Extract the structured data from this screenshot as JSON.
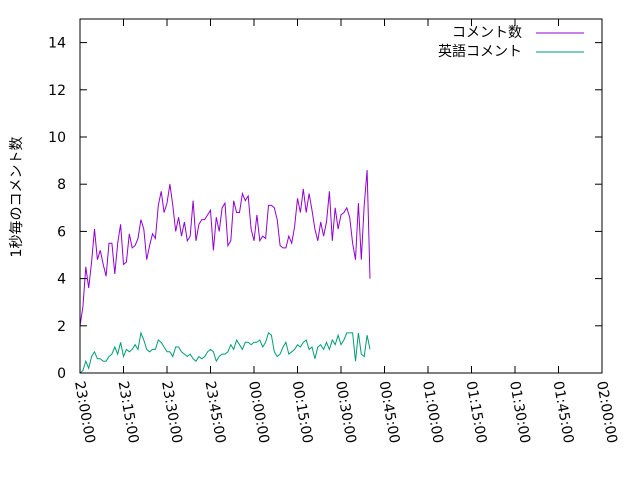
{
  "chart_data": {
    "type": "line",
    "title": "",
    "xlabel": "",
    "ylabel": "1秒毎のコメント数",
    "ylim": [
      0,
      15
    ],
    "yticks": [
      0,
      2,
      4,
      6,
      8,
      10,
      12,
      14
    ],
    "xlim": [
      "23:00:00",
      "02:00:00"
    ],
    "xticks": [
      "23:00:00",
      "23:15:00",
      "23:30:00",
      "23:45:00",
      "00:00:00",
      "00:15:00",
      "00:30:00",
      "00:45:00",
      "01:00:00",
      "01:15:00",
      "01:30:00",
      "01:45:00",
      "02:00:00"
    ],
    "legend_position": "top-right",
    "grid": false,
    "series": [
      {
        "name": "コメント数",
        "color": "#9400d3",
        "points": [
          [
            "23:00:00",
            2.0
          ],
          [
            "23:01:00",
            2.8
          ],
          [
            "23:02:00",
            4.5
          ],
          [
            "23:03:00",
            3.6
          ],
          [
            "23:04:00",
            4.7
          ],
          [
            "23:05:00",
            6.1
          ],
          [
            "23:06:00",
            4.8
          ],
          [
            "23:07:00",
            5.2
          ],
          [
            "23:08:00",
            4.6
          ],
          [
            "23:09:00",
            4.1
          ],
          [
            "23:10:00",
            5.5
          ],
          [
            "23:11:00",
            5.5
          ],
          [
            "23:12:00",
            4.2
          ],
          [
            "23:13:00",
            5.5
          ],
          [
            "23:14:00",
            6.3
          ],
          [
            "23:15:00",
            4.6
          ],
          [
            "23:16:00",
            4.7
          ],
          [
            "23:17:00",
            5.9
          ],
          [
            "23:18:00",
            5.3
          ],
          [
            "23:19:00",
            5.4
          ],
          [
            "23:20:00",
            5.7
          ],
          [
            "23:21:00",
            6.5
          ],
          [
            "23:22:00",
            6.1
          ],
          [
            "23:23:00",
            4.8
          ],
          [
            "23:24:00",
            5.4
          ],
          [
            "23:25:00",
            5.9
          ],
          [
            "23:26:00",
            5.7
          ],
          [
            "23:27:00",
            7.1
          ],
          [
            "23:28:00",
            7.7
          ],
          [
            "23:29:00",
            6.8
          ],
          [
            "23:30:00",
            7.2
          ],
          [
            "23:31:00",
            8.0
          ],
          [
            "23:32:00",
            7.1
          ],
          [
            "23:33:00",
            6.0
          ],
          [
            "23:34:00",
            6.6
          ],
          [
            "23:35:00",
            5.8
          ],
          [
            "23:36:00",
            6.4
          ],
          [
            "23:37:00",
            5.6
          ],
          [
            "23:38:00",
            5.8
          ],
          [
            "23:39:00",
            7.3
          ],
          [
            "23:40:00",
            5.6
          ],
          [
            "23:41:00",
            6.3
          ],
          [
            "23:42:00",
            6.5
          ],
          [
            "23:43:00",
            6.5
          ],
          [
            "23:44:00",
            6.7
          ],
          [
            "23:45:00",
            6.9
          ],
          [
            "23:46:00",
            5.2
          ],
          [
            "23:47:00",
            6.6
          ],
          [
            "23:48:00",
            6.0
          ],
          [
            "23:49:00",
            7.0
          ],
          [
            "23:50:00",
            7.2
          ],
          [
            "23:51:00",
            5.4
          ],
          [
            "23:52:00",
            5.6
          ],
          [
            "23:53:00",
            7.3
          ],
          [
            "23:54:00",
            6.8
          ],
          [
            "23:55:00",
            6.8
          ],
          [
            "23:56:00",
            7.6
          ],
          [
            "23:57:00",
            7.3
          ],
          [
            "23:58:00",
            7.5
          ],
          [
            "23:59:00",
            6.1
          ],
          [
            "00:00:00",
            5.6
          ],
          [
            "00:01:00",
            6.7
          ],
          [
            "00:02:00",
            5.6
          ],
          [
            "00:03:00",
            5.8
          ],
          [
            "00:04:00",
            5.7
          ],
          [
            "00:05:00",
            7.1
          ],
          [
            "00:06:00",
            7.1
          ],
          [
            "00:07:00",
            7.0
          ],
          [
            "00:08:00",
            6.5
          ],
          [
            "00:09:00",
            5.4
          ],
          [
            "00:10:00",
            5.3
          ],
          [
            "00:11:00",
            5.3
          ],
          [
            "00:12:00",
            5.8
          ],
          [
            "00:13:00",
            5.5
          ],
          [
            "00:14:00",
            6.2
          ],
          [
            "00:15:00",
            7.4
          ],
          [
            "00:16:00",
            6.8
          ],
          [
            "00:17:00",
            7.8
          ],
          [
            "00:18:00",
            6.8
          ],
          [
            "00:19:00",
            7.6
          ],
          [
            "00:20:00",
            6.9
          ],
          [
            "00:21:00",
            6.1
          ],
          [
            "00:22:00",
            5.6
          ],
          [
            "00:23:00",
            6.4
          ],
          [
            "00:24:00",
            5.8
          ],
          [
            "00:25:00",
            6.4
          ],
          [
            "00:26:00",
            7.7
          ],
          [
            "00:27:00",
            5.6
          ],
          [
            "00:28:00",
            7.0
          ],
          [
            "00:29:00",
            6.1
          ],
          [
            "00:30:00",
            6.7
          ],
          [
            "00:31:00",
            6.8
          ],
          [
            "00:32:00",
            7.0
          ],
          [
            "00:33:00",
            6.6
          ],
          [
            "00:34:00",
            5.5
          ],
          [
            "00:35:00",
            4.8
          ],
          [
            "00:36:00",
            7.2
          ],
          [
            "00:37:00",
            4.8
          ],
          [
            "00:38:00",
            7.1
          ],
          [
            "00:39:00",
            8.6
          ],
          [
            "00:40:00",
            4.0
          ]
        ]
      },
      {
        "name": "英語コメント",
        "color": "#009e73",
        "points": [
          [
            "23:00:00",
            0.0
          ],
          [
            "23:01:00",
            0.1
          ],
          [
            "23:02:00",
            0.5
          ],
          [
            "23:03:00",
            0.2
          ],
          [
            "23:04:00",
            0.7
          ],
          [
            "23:05:00",
            0.9
          ],
          [
            "23:06:00",
            0.6
          ],
          [
            "23:07:00",
            0.6
          ],
          [
            "23:08:00",
            0.5
          ],
          [
            "23:09:00",
            0.5
          ],
          [
            "23:10:00",
            0.7
          ],
          [
            "23:11:00",
            0.8
          ],
          [
            "23:12:00",
            1.1
          ],
          [
            "23:13:00",
            0.8
          ],
          [
            "23:14:00",
            1.3
          ],
          [
            "23:15:00",
            0.7
          ],
          [
            "23:16:00",
            1.0
          ],
          [
            "23:17:00",
            0.9
          ],
          [
            "23:18:00",
            1.0
          ],
          [
            "23:19:00",
            1.2
          ],
          [
            "23:20:00",
            1.0
          ],
          [
            "23:21:00",
            1.7
          ],
          [
            "23:22:00",
            1.4
          ],
          [
            "23:23:00",
            1.0
          ],
          [
            "23:24:00",
            0.9
          ],
          [
            "23:25:00",
            1.0
          ],
          [
            "23:26:00",
            1.0
          ],
          [
            "23:27:00",
            1.4
          ],
          [
            "23:28:00",
            1.3
          ],
          [
            "23:29:00",
            1.1
          ],
          [
            "23:30:00",
            0.9
          ],
          [
            "23:31:00",
            0.9
          ],
          [
            "23:32:00",
            0.7
          ],
          [
            "23:33:00",
            1.1
          ],
          [
            "23:34:00",
            1.1
          ],
          [
            "23:35:00",
            0.9
          ],
          [
            "23:36:00",
            0.8
          ],
          [
            "23:37:00",
            0.7
          ],
          [
            "23:38:00",
            0.8
          ],
          [
            "23:39:00",
            0.6
          ],
          [
            "23:40:00",
            0.5
          ],
          [
            "23:41:00",
            0.7
          ],
          [
            "23:42:00",
            0.6
          ],
          [
            "23:43:00",
            0.7
          ],
          [
            "23:44:00",
            0.9
          ],
          [
            "23:45:00",
            1.0
          ],
          [
            "23:46:00",
            0.9
          ],
          [
            "23:47:00",
            0.5
          ],
          [
            "23:48:00",
            0.7
          ],
          [
            "23:49:00",
            0.8
          ],
          [
            "23:50:00",
            0.8
          ],
          [
            "23:51:00",
            0.9
          ],
          [
            "23:52:00",
            1.2
          ],
          [
            "23:53:00",
            1.0
          ],
          [
            "23:54:00",
            1.4
          ],
          [
            "23:55:00",
            1.2
          ],
          [
            "23:56:00",
            1.0
          ],
          [
            "23:57:00",
            1.3
          ],
          [
            "23:58:00",
            1.3
          ],
          [
            "23:59:00",
            1.2
          ],
          [
            "00:00:00",
            1.3
          ],
          [
            "00:01:00",
            1.3
          ],
          [
            "00:02:00",
            1.4
          ],
          [
            "00:03:00",
            1.1
          ],
          [
            "00:04:00",
            1.3
          ],
          [
            "00:05:00",
            1.7
          ],
          [
            "00:06:00",
            1.6
          ],
          [
            "00:07:00",
            0.9
          ],
          [
            "00:08:00",
            0.7
          ],
          [
            "00:09:00",
            0.8
          ],
          [
            "00:10:00",
            1.1
          ],
          [
            "00:11:00",
            1.3
          ],
          [
            "00:12:00",
            0.8
          ],
          [
            "00:13:00",
            0.9
          ],
          [
            "00:14:00",
            1.0
          ],
          [
            "00:15:00",
            1.2
          ],
          [
            "00:16:00",
            1.1
          ],
          [
            "00:17:00",
            1.3
          ],
          [
            "00:18:00",
            1.4
          ],
          [
            "00:19:00",
            1.0
          ],
          [
            "00:20:00",
            1.1
          ],
          [
            "00:21:00",
            0.6
          ],
          [
            "00:22:00",
            1.1
          ],
          [
            "00:23:00",
            1.2
          ],
          [
            "00:24:00",
            1.0
          ],
          [
            "00:25:00",
            1.3
          ],
          [
            "00:26:00",
            1.0
          ],
          [
            "00:27:00",
            1.4
          ],
          [
            "00:28:00",
            1.2
          ],
          [
            "00:29:00",
            1.6
          ],
          [
            "00:30:00",
            1.2
          ],
          [
            "00:31:00",
            1.4
          ],
          [
            "00:32:00",
            1.7
          ],
          [
            "00:33:00",
            1.7
          ],
          [
            "00:34:00",
            1.7
          ],
          [
            "00:35:00",
            0.5
          ],
          [
            "00:36:00",
            1.7
          ],
          [
            "00:37:00",
            0.8
          ],
          [
            "00:38:00",
            0.7
          ],
          [
            "00:39:00",
            1.6
          ],
          [
            "00:40:00",
            1.0
          ]
        ]
      }
    ]
  }
}
